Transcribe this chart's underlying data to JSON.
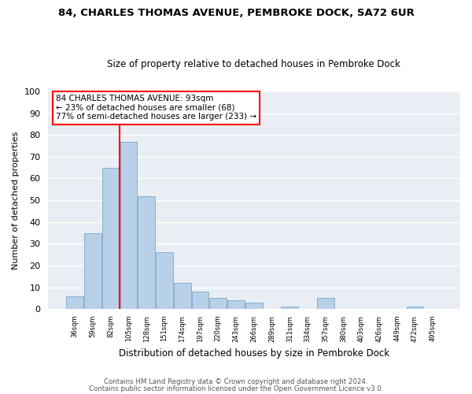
{
  "title": "84, CHARLES THOMAS AVENUE, PEMBROKE DOCK, SA72 6UR",
  "subtitle": "Size of property relative to detached houses in Pembroke Dock",
  "xlabel": "Distribution of detached houses by size in Pembroke Dock",
  "ylabel": "Number of detached properties",
  "bin_labels": [
    "36sqm",
    "59sqm",
    "82sqm",
    "105sqm",
    "128sqm",
    "151sqm",
    "174sqm",
    "197sqm",
    "220sqm",
    "243sqm",
    "266sqm",
    "289sqm",
    "311sqm",
    "334sqm",
    "357sqm",
    "380sqm",
    "403sqm",
    "426sqm",
    "449sqm",
    "472sqm",
    "495sqm"
  ],
  "bar_heights": [
    6,
    35,
    65,
    77,
    52,
    26,
    12,
    8,
    5,
    4,
    3,
    0,
    1,
    0,
    5,
    0,
    0,
    0,
    0,
    1,
    0
  ],
  "bar_color": "#b8d0e8",
  "bar_edge_color": "#8ab0d0",
  "vline_color": "red",
  "vline_x_index": 3,
  "ylim": [
    0,
    100
  ],
  "yticks": [
    0,
    10,
    20,
    30,
    40,
    50,
    60,
    70,
    80,
    90,
    100
  ],
  "annotation_title": "84 CHARLES THOMAS AVENUE: 93sqm",
  "annotation_line1": "← 23% of detached houses are smaller (68)",
  "annotation_line2": "77% of semi-detached houses are larger (233) →",
  "annotation_box_color": "white",
  "annotation_box_edge": "red",
  "footer_line1": "Contains HM Land Registry data © Crown copyright and database right 2024.",
  "footer_line2": "Contains public sector information licensed under the Open Government Licence v3.0.",
  "background_color": "#e8eef4",
  "grid_color": "white",
  "plot_bg": "#dce6f0"
}
